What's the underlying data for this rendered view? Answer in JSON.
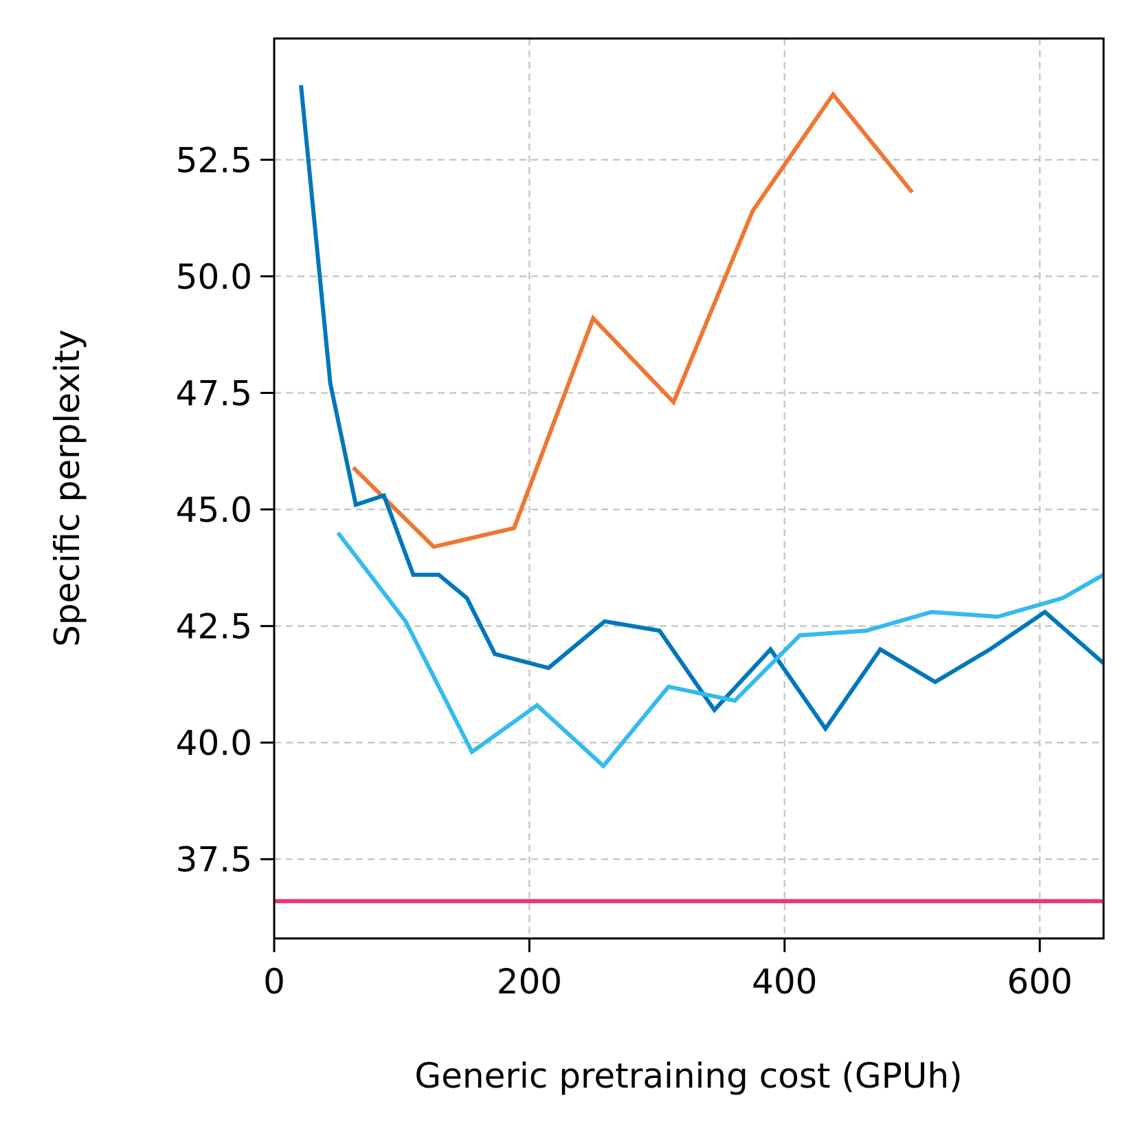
{
  "chart_data": {
    "type": "line",
    "title": "",
    "xlabel": "Generic pretraining cost (GPUh)",
    "ylabel": "Specific perplexity",
    "xlim": [
      0,
      650
    ],
    "ylim": [
      35.8,
      55.1
    ],
    "xticks": [
      0,
      200,
      400,
      600
    ],
    "xtick_labels": [
      "0",
      "200",
      "400",
      "600"
    ],
    "yticks": [
      37.5,
      40.0,
      42.5,
      45.0,
      47.5,
      50.0,
      52.5
    ],
    "ytick_labels": [
      "37.5",
      "40.0",
      "42.5",
      "45.0",
      "47.5",
      "50.0",
      "52.5"
    ],
    "grid": true,
    "grid_style": "dashed",
    "legend": "none",
    "series": [
      {
        "color": "#EE7733",
        "x": [
          62,
          125,
          188,
          250,
          313,
          375,
          438,
          500
        ],
        "y": [
          45.9,
          44.2,
          44.6,
          49.1,
          47.3,
          51.4,
          53.9,
          51.8
        ]
      },
      {
        "color": "#0077BB",
        "x": [
          21,
          44,
          64,
          86,
          109,
          129,
          151,
          173,
          215,
          259,
          302,
          345,
          389,
          432,
          475,
          518,
          561,
          604,
          650
        ],
        "y": [
          54.1,
          47.7,
          45.1,
          45.3,
          43.6,
          43.6,
          43.1,
          41.9,
          41.6,
          42.6,
          42.4,
          40.7,
          42.0,
          40.3,
          42.0,
          41.3,
          42.0,
          42.8,
          41.7
        ]
      },
      {
        "color": "#33BBEE",
        "x": [
          50,
          103,
          155,
          206,
          258,
          309,
          361,
          412,
          464,
          515,
          567,
          618,
          650
        ],
        "y": [
          44.5,
          42.6,
          39.8,
          40.8,
          39.5,
          41.2,
          40.9,
          42.3,
          42.4,
          42.8,
          42.7,
          43.1,
          43.6
        ]
      },
      {
        "color": "#EE3377",
        "x": [
          0,
          650
        ],
        "y": [
          36.6,
          36.6
        ]
      }
    ]
  }
}
